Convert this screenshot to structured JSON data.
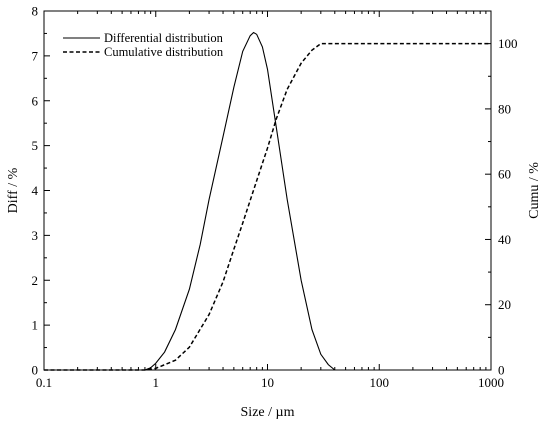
{
  "chart_data": {
    "type": "line",
    "xlabel": "Size / µm",
    "ylabel_left": "Diff / %",
    "ylabel_right": "Cumu / %",
    "xscale": "log",
    "xlim": [
      0.1,
      1000
    ],
    "ylim_left": [
      0,
      8
    ],
    "ylim_right": [
      0,
      110
    ],
    "x_ticks": [
      "0.1",
      "1",
      "10",
      "100",
      "1000"
    ],
    "y_left_ticks": [
      "0",
      "1",
      "2",
      "3",
      "4",
      "5",
      "6",
      "7",
      "8"
    ],
    "y_right_ticks": [
      "0",
      "20",
      "40",
      "60",
      "80",
      "100"
    ],
    "grid": false,
    "legend_position": "top-left",
    "series": [
      {
        "name": "Differential distribution",
        "axis": "left",
        "style": "solid",
        "x": [
          0.1,
          0.8,
          0.9,
          1.0,
          1.2,
          1.5,
          2.0,
          2.5,
          3.0,
          4.0,
          5.0,
          6.0,
          7.0,
          7.5,
          8.0,
          9.0,
          10,
          12,
          15,
          20,
          25,
          30,
          35,
          40,
          1000
        ],
        "y": [
          0,
          0,
          0.05,
          0.15,
          0.4,
          0.9,
          1.8,
          2.8,
          3.8,
          5.2,
          6.3,
          7.1,
          7.45,
          7.52,
          7.48,
          7.2,
          6.7,
          5.4,
          3.8,
          2.0,
          0.9,
          0.35,
          0.12,
          0,
          0
        ]
      },
      {
        "name": "Cumulative distribution",
        "axis": "right",
        "style": "dashed",
        "x": [
          0.1,
          0.8,
          1.0,
          1.5,
          2.0,
          3.0,
          4.0,
          5.0,
          6.0,
          8.0,
          10,
          12,
          15,
          20,
          25,
          30,
          35,
          1000
        ],
        "y": [
          0,
          0,
          0.5,
          3,
          7,
          17,
          27,
          37,
          45,
          58,
          68,
          77,
          86,
          94,
          98,
          100,
          100,
          100
        ]
      }
    ]
  }
}
